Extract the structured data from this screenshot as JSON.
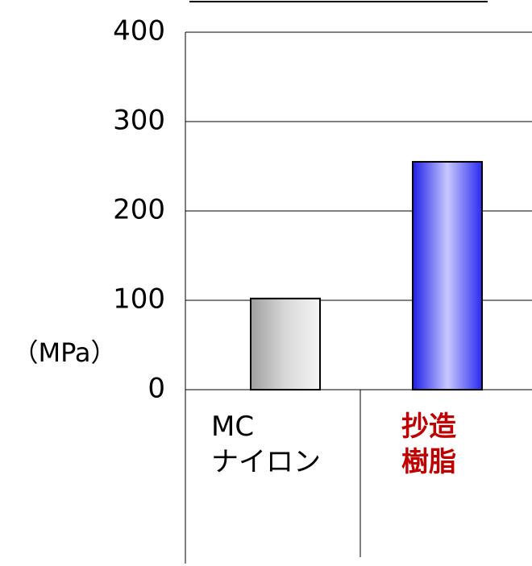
{
  "chart_data": {
    "type": "bar",
    "y_unit_label": "（MPa）",
    "categories": [
      "MC\nナイロン",
      "抄造\n樹脂"
    ],
    "values": [
      102,
      255
    ],
    "colors": [
      "#b8b8b8",
      "#3a3af0"
    ],
    "category_label_colors": [
      "#000000",
      "#c00000"
    ],
    "ylim": [
      0,
      400
    ],
    "yticks": [
      0,
      100,
      200,
      300,
      400
    ],
    "grid": true
  }
}
